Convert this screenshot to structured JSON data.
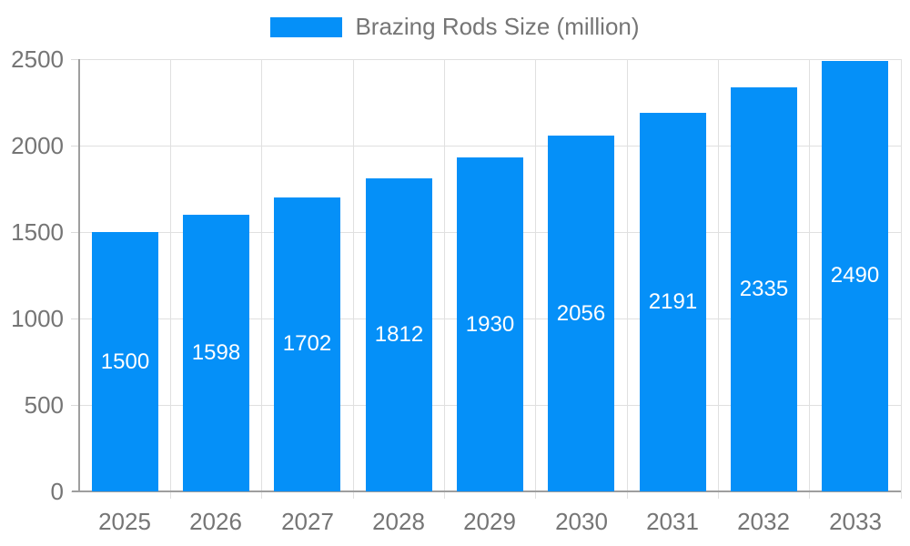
{
  "legend": {
    "label": "Brazing Rods Size (million)"
  },
  "chart_data": {
    "type": "bar",
    "title": "Brazing Rods Size (million)",
    "series_name": "Brazing Rods Size (million)",
    "categories": [
      "2025",
      "2026",
      "2027",
      "2028",
      "2029",
      "2030",
      "2031",
      "2032",
      "2033"
    ],
    "values": [
      1500,
      1598,
      1702,
      1812,
      1930,
      2056,
      2191,
      2335,
      2490
    ],
    "value_labels": [
      "1500",
      "1598",
      "1702",
      "1812",
      "1930",
      "2056",
      "2191",
      "2335",
      "2490"
    ],
    "xlabel": "",
    "ylabel": "",
    "ylim": [
      0,
      2500
    ],
    "yticks": [
      0,
      500,
      1000,
      1500,
      2000,
      2500
    ],
    "ytick_labels": [
      "0",
      "500",
      "1000",
      "1500",
      "2000",
      "2500"
    ],
    "grid": true,
    "legend_position": "top-center",
    "bar_color": "#0590f8",
    "value_label_color": "#ffffff",
    "axis_text_color": "#757575",
    "gridline_color": "#e0e0e0",
    "axis_line_color": "#9e9e9e"
  }
}
